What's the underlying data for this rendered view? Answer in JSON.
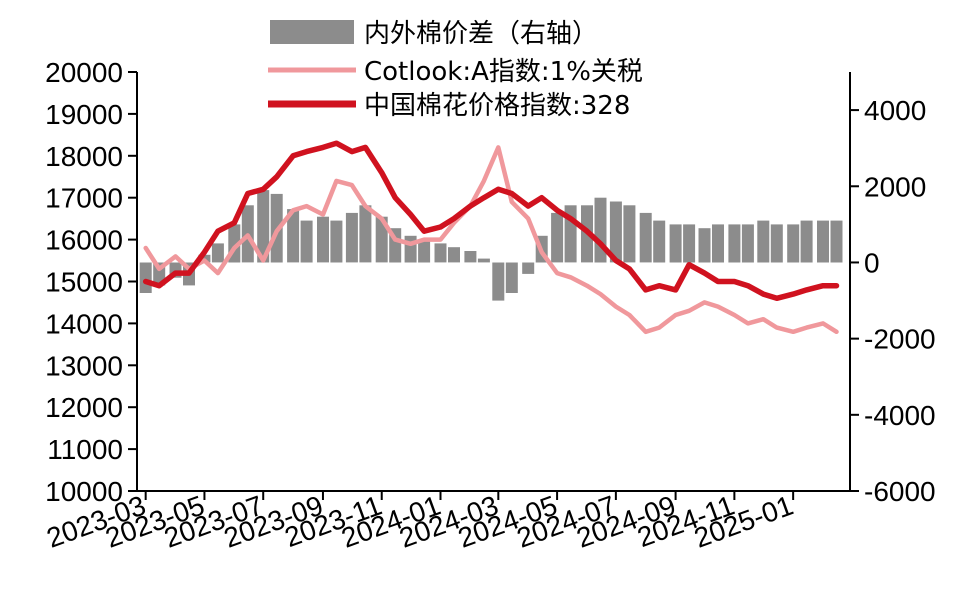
{
  "chart_data": {
    "type": "line",
    "title": "",
    "xlabel": "",
    "ylabel": "",
    "y2label": "",
    "ylim": [
      10000,
      20000
    ],
    "y2lim": [
      -6000,
      5000
    ],
    "x_tick_labels": [
      "2023-03",
      "2023-05",
      "2023-07",
      "2023-09",
      "2023-11",
      "2024-01",
      "2024-03",
      "2024-05",
      "2024-07",
      "2024-09",
      "2024-11",
      "2025-01"
    ],
    "y_tick_labels": [
      "10000",
      "11000",
      "12000",
      "13000",
      "14000",
      "15000",
      "16000",
      "17000",
      "18000",
      "19000",
      "20000"
    ],
    "y2_tick_labels": [
      "-6000",
      "-4000",
      "-2000",
      "0",
      "2000",
      "4000"
    ],
    "grid": false,
    "legend_position": "top",
    "colors": {
      "spread_bars": "#8c8c8c",
      "cotlook": "#f0989c",
      "china_index": "#d0121f"
    },
    "series": [
      {
        "name": "内外棉价差（右轴）",
        "type": "bar",
        "axis": "right",
        "color": "#8c8c8c",
        "points": [
          [
            "2023-03-01",
            -800
          ],
          [
            "2023-03-15",
            -600
          ],
          [
            "2023-04-01",
            -400
          ],
          [
            "2023-04-15",
            -600
          ],
          [
            "2023-05-01",
            200
          ],
          [
            "2023-05-15",
            500
          ],
          [
            "2023-06-01",
            1000
          ],
          [
            "2023-06-15",
            1500
          ],
          [
            "2023-07-01",
            1900
          ],
          [
            "2023-07-15",
            1800
          ],
          [
            "2023-08-01",
            1400
          ],
          [
            "2023-08-15",
            1100
          ],
          [
            "2023-09-01",
            1200
          ],
          [
            "2023-09-15",
            1100
          ],
          [
            "2023-10-01",
            1300
          ],
          [
            "2023-10-15",
            1500
          ],
          [
            "2023-11-01",
            1200
          ],
          [
            "2023-11-15",
            900
          ],
          [
            "2023-12-01",
            700
          ],
          [
            "2023-12-15",
            600
          ],
          [
            "2024-01-01",
            500
          ],
          [
            "2024-01-15",
            400
          ],
          [
            "2024-02-01",
            300
          ],
          [
            "2024-02-15",
            100
          ],
          [
            "2024-03-01",
            -1000
          ],
          [
            "2024-03-15",
            -800
          ],
          [
            "2024-04-01",
            -300
          ],
          [
            "2024-04-15",
            700
          ],
          [
            "2024-05-01",
            1300
          ],
          [
            "2024-05-15",
            1500
          ],
          [
            "2024-06-01",
            1500
          ],
          [
            "2024-06-15",
            1700
          ],
          [
            "2024-07-01",
            1600
          ],
          [
            "2024-07-15",
            1500
          ],
          [
            "2024-08-01",
            1300
          ],
          [
            "2024-08-15",
            1100
          ],
          [
            "2024-09-01",
            1000
          ],
          [
            "2024-09-15",
            1000
          ],
          [
            "2024-10-01",
            900
          ],
          [
            "2024-10-15",
            1000
          ],
          [
            "2024-11-01",
            1000
          ],
          [
            "2024-11-15",
            1000
          ],
          [
            "2024-12-01",
            1100
          ],
          [
            "2024-12-15",
            1000
          ],
          [
            "2025-01-01",
            1000
          ],
          [
            "2025-01-15",
            1100
          ],
          [
            "2025-02-01",
            1100
          ],
          [
            "2025-02-15",
            1100
          ]
        ]
      },
      {
        "name": "Cotlook:A指数:1%关税",
        "type": "line",
        "axis": "left",
        "color": "#f0989c",
        "points": [
          [
            "2023-03-01",
            15800
          ],
          [
            "2023-03-15",
            15300
          ],
          [
            "2023-04-01",
            15600
          ],
          [
            "2023-04-15",
            15300
          ],
          [
            "2023-05-01",
            15500
          ],
          [
            "2023-05-15",
            15200
          ],
          [
            "2023-06-01",
            15800
          ],
          [
            "2023-06-15",
            16100
          ],
          [
            "2023-07-01",
            15500
          ],
          [
            "2023-07-15",
            16200
          ],
          [
            "2023-08-01",
            16700
          ],
          [
            "2023-08-15",
            16800
          ],
          [
            "2023-09-01",
            16600
          ],
          [
            "2023-09-15",
            17400
          ],
          [
            "2023-10-01",
            17300
          ],
          [
            "2023-10-15",
            16800
          ],
          [
            "2023-11-01",
            16500
          ],
          [
            "2023-11-15",
            16000
          ],
          [
            "2023-12-01",
            15900
          ],
          [
            "2023-12-15",
            16000
          ],
          [
            "2024-01-01",
            16000
          ],
          [
            "2024-01-15",
            16400
          ],
          [
            "2024-02-01",
            16800
          ],
          [
            "2024-02-15",
            17400
          ],
          [
            "2024-03-01",
            18200
          ],
          [
            "2024-03-15",
            16900
          ],
          [
            "2024-04-01",
            16500
          ],
          [
            "2024-04-15",
            15700
          ],
          [
            "2024-05-01",
            15200
          ],
          [
            "2024-05-15",
            15100
          ],
          [
            "2024-06-01",
            14900
          ],
          [
            "2024-06-15",
            14700
          ],
          [
            "2024-07-01",
            14400
          ],
          [
            "2024-07-15",
            14200
          ],
          [
            "2024-08-01",
            13800
          ],
          [
            "2024-08-15",
            13900
          ],
          [
            "2024-09-01",
            14200
          ],
          [
            "2024-09-15",
            14300
          ],
          [
            "2024-10-01",
            14500
          ],
          [
            "2024-10-15",
            14400
          ],
          [
            "2024-11-01",
            14200
          ],
          [
            "2024-11-15",
            14000
          ],
          [
            "2024-12-01",
            14100
          ],
          [
            "2024-12-15",
            13900
          ],
          [
            "2025-01-01",
            13800
          ],
          [
            "2025-01-15",
            13900
          ],
          [
            "2025-02-01",
            14000
          ],
          [
            "2025-02-15",
            13800
          ]
        ]
      },
      {
        "name": "中国棉花价格指数:328",
        "type": "line",
        "axis": "left",
        "color": "#d0121f",
        "points": [
          [
            "2023-03-01",
            15000
          ],
          [
            "2023-03-15",
            14900
          ],
          [
            "2023-04-01",
            15200
          ],
          [
            "2023-04-15",
            15200
          ],
          [
            "2023-05-01",
            15700
          ],
          [
            "2023-05-15",
            16200
          ],
          [
            "2023-06-01",
            16400
          ],
          [
            "2023-06-15",
            17100
          ],
          [
            "2023-07-01",
            17200
          ],
          [
            "2023-07-15",
            17500
          ],
          [
            "2023-08-01",
            18000
          ],
          [
            "2023-08-15",
            18100
          ],
          [
            "2023-09-01",
            18200
          ],
          [
            "2023-09-15",
            18300
          ],
          [
            "2023-10-01",
            18100
          ],
          [
            "2023-10-15",
            18200
          ],
          [
            "2023-11-01",
            17600
          ],
          [
            "2023-11-15",
            17000
          ],
          [
            "2023-12-01",
            16600
          ],
          [
            "2023-12-15",
            16200
          ],
          [
            "2024-01-01",
            16300
          ],
          [
            "2024-01-15",
            16500
          ],
          [
            "2024-02-01",
            16800
          ],
          [
            "2024-02-15",
            17000
          ],
          [
            "2024-03-01",
            17200
          ],
          [
            "2024-03-15",
            17100
          ],
          [
            "2024-04-01",
            16800
          ],
          [
            "2024-04-15",
            17000
          ],
          [
            "2024-05-01",
            16700
          ],
          [
            "2024-05-15",
            16500
          ],
          [
            "2024-06-01",
            16200
          ],
          [
            "2024-06-15",
            15900
          ],
          [
            "2024-07-01",
            15500
          ],
          [
            "2024-07-15",
            15300
          ],
          [
            "2024-08-01",
            14800
          ],
          [
            "2024-08-15",
            14900
          ],
          [
            "2024-09-01",
            14800
          ],
          [
            "2024-09-15",
            15400
          ],
          [
            "2024-10-01",
            15200
          ],
          [
            "2024-10-15",
            15000
          ],
          [
            "2024-11-01",
            15000
          ],
          [
            "2024-11-15",
            14900
          ],
          [
            "2024-12-01",
            14700
          ],
          [
            "2024-12-15",
            14600
          ],
          [
            "2025-01-01",
            14700
          ],
          [
            "2025-01-15",
            14800
          ],
          [
            "2025-02-01",
            14900
          ],
          [
            "2025-02-15",
            14900
          ]
        ]
      }
    ]
  }
}
